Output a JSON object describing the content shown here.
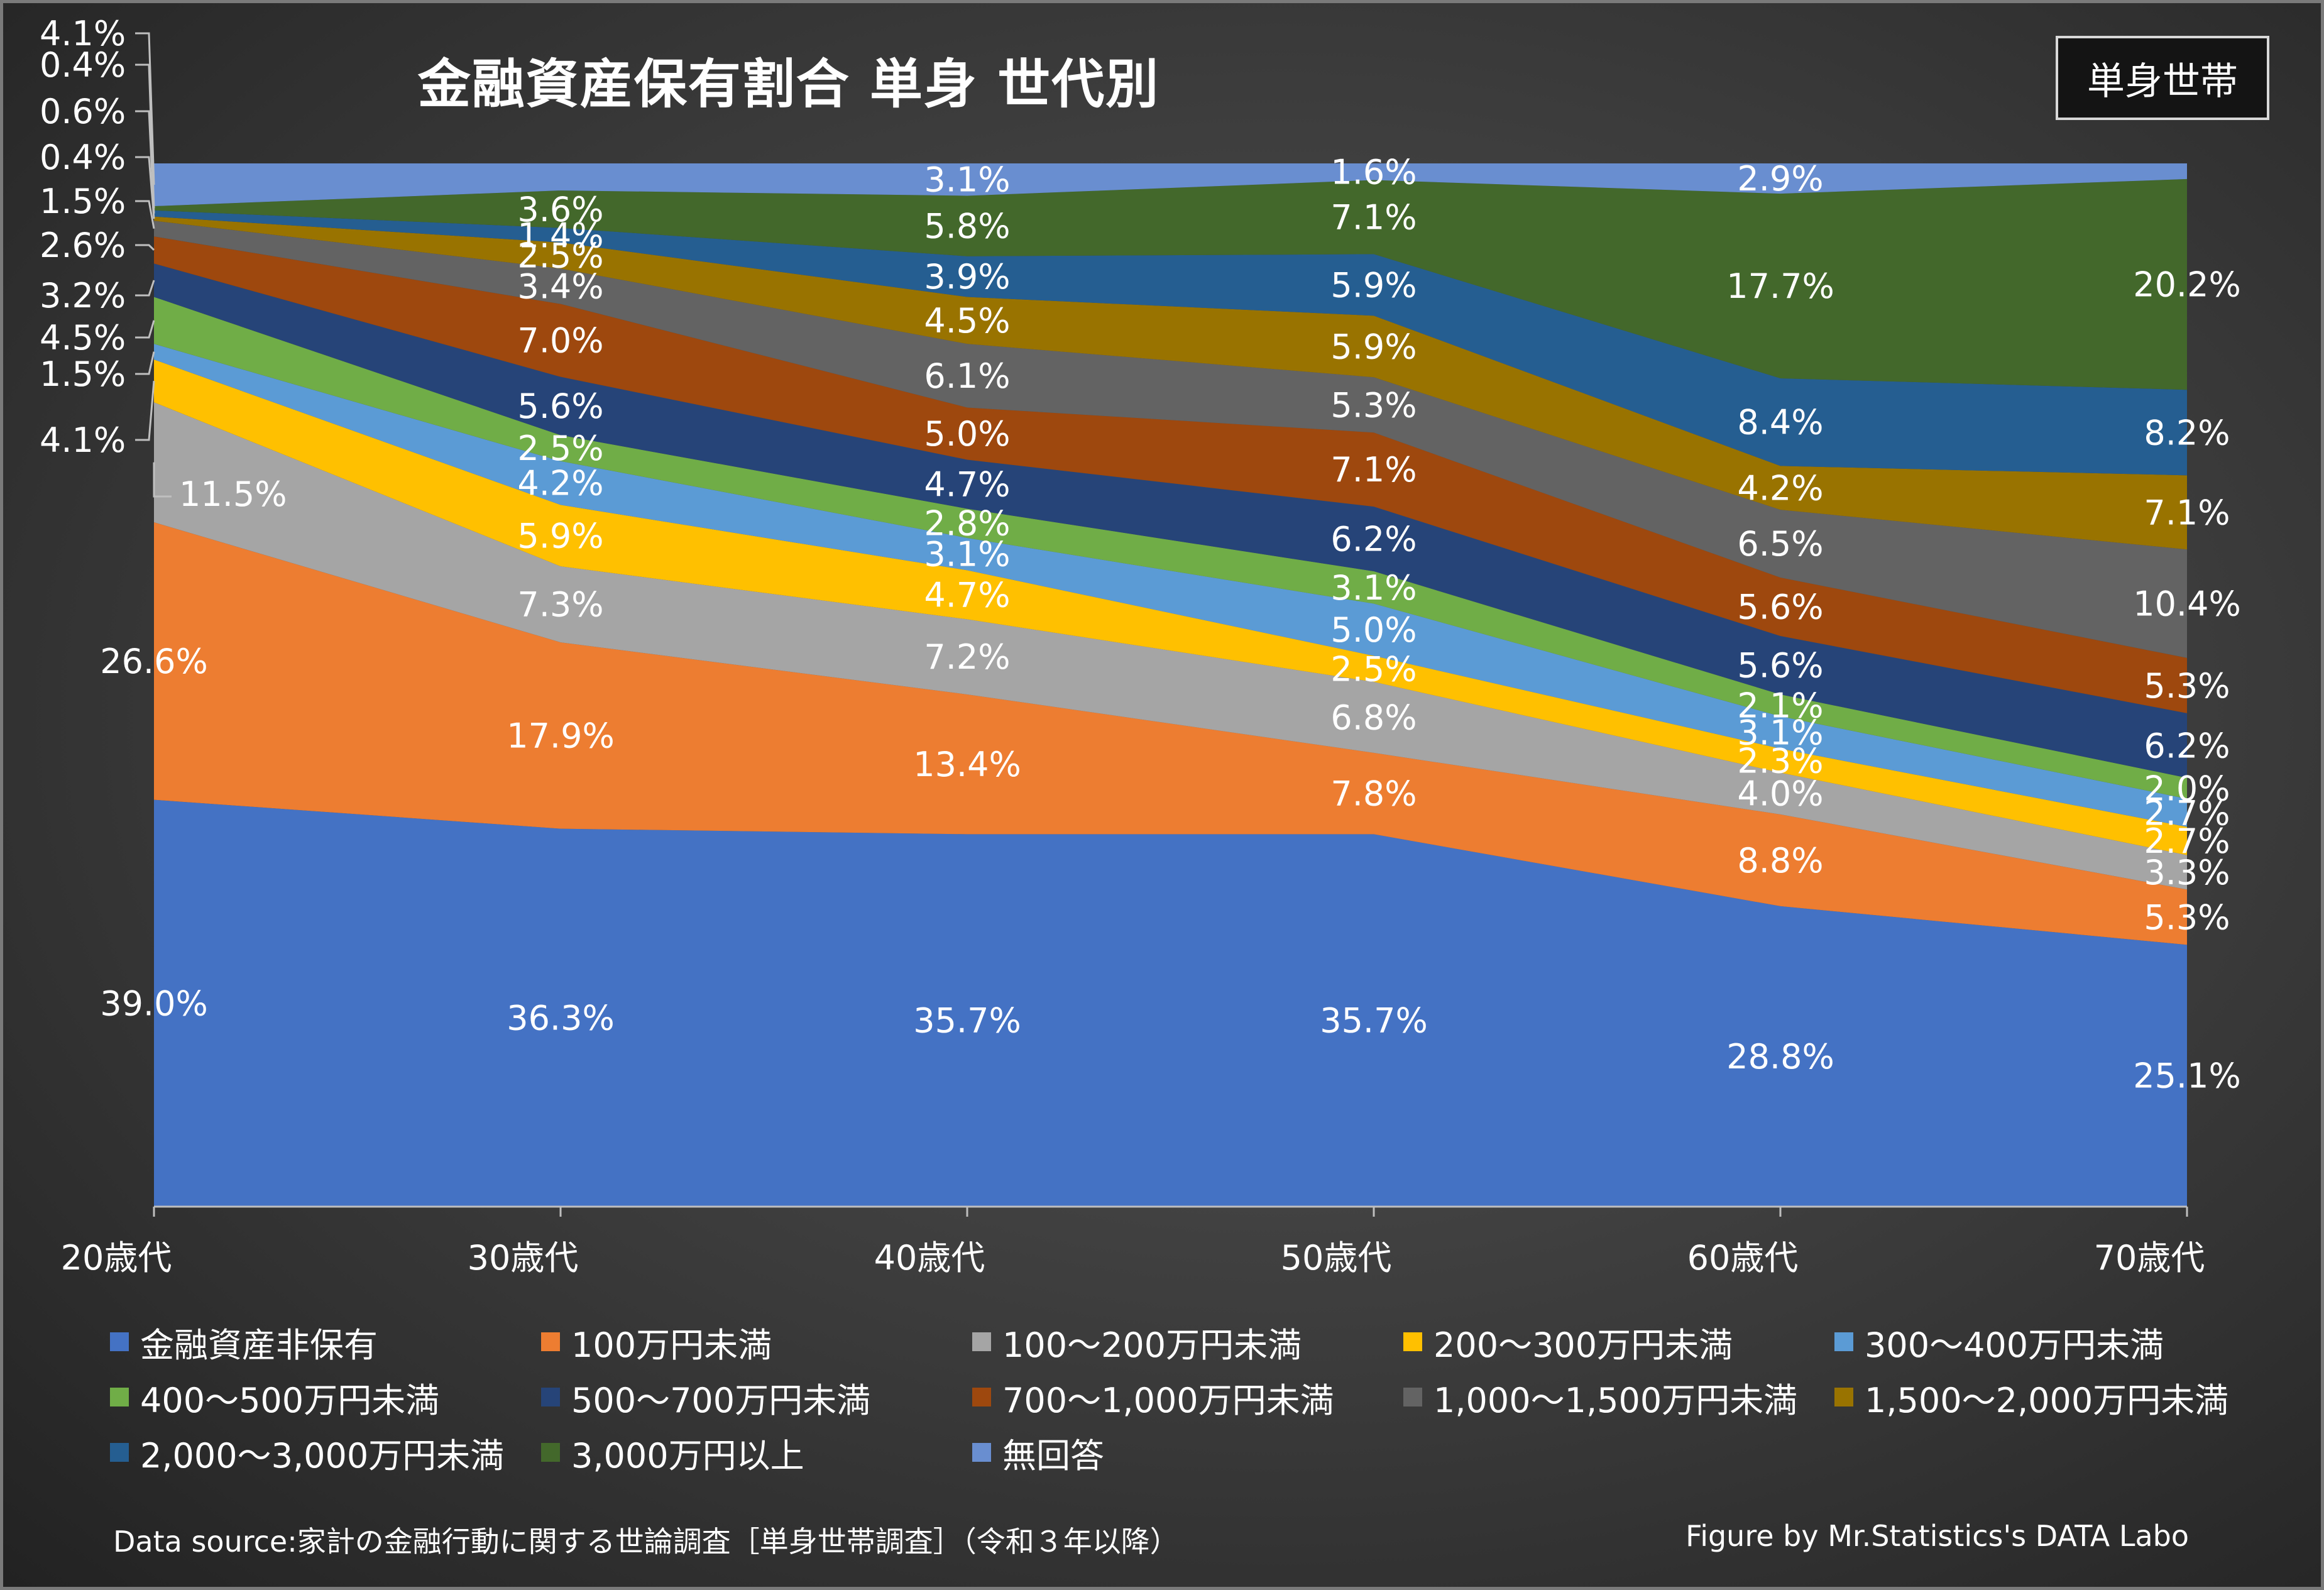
{
  "title": "金融資産保有割合 単身 世代別",
  "badge": "単身世帯",
  "source": "Data source:家計の金融行動に関する世論調査［単身世帯調査］（令和３年以降）",
  "credit": "Figure by Mr.Statistics's DATA Labo",
  "chart_data": {
    "type": "area",
    "stacked": true,
    "normalized_percent": true,
    "categories": [
      "20歳代",
      "30歳代",
      "40歳代",
      "50歳代",
      "60歳代",
      "70歳代"
    ],
    "ylim": [
      0,
      100
    ],
    "grid": false,
    "legend_position": "bottom",
    "series": [
      {
        "name": "金融資産非保有",
        "color": "#4472C4",
        "values": [
          39.0,
          36.3,
          35.7,
          35.7,
          28.8,
          25.1
        ],
        "labels": [
          "39.0%",
          "36.3%",
          "35.7%",
          "35.7%",
          "28.8%",
          "25.1%"
        ]
      },
      {
        "name": "100万円未満",
        "color": "#ED7D31",
        "values": [
          26.6,
          17.9,
          13.4,
          7.8,
          8.8,
          5.3
        ],
        "labels": [
          "26.6%",
          "17.9%",
          "13.4%",
          "7.8%",
          "8.8%",
          "5.3%"
        ]
      },
      {
        "name": "100～200万円未満",
        "color": "#A5A5A5",
        "values": [
          11.5,
          7.3,
          7.2,
          6.8,
          4.0,
          3.3
        ],
        "labels": [
          "11.5%",
          "7.3%",
          "7.2%",
          "6.8%",
          "4.0%",
          "3.3%"
        ]
      },
      {
        "name": "200～300万円未満",
        "color": "#FFC000",
        "values": [
          4.1,
          5.9,
          4.7,
          2.5,
          2.3,
          2.7
        ],
        "labels": [
          "4.1%",
          "5.9%",
          "4.7%",
          "2.5%",
          "2.3%",
          "2.7%"
        ]
      },
      {
        "name": "300～400万円未満",
        "color": "#5B9BD5",
        "values": [
          1.5,
          4.2,
          3.1,
          5.0,
          3.1,
          2.7
        ],
        "labels": [
          "1.5%",
          "4.2%",
          "3.1%",
          "5.0%",
          "3.1%",
          "2.7%"
        ]
      },
      {
        "name": "400～500万円未満",
        "color": "#70AD47",
        "values": [
          4.5,
          2.5,
          2.8,
          3.1,
          2.1,
          2.0
        ],
        "labels": [
          "4.5%",
          "2.5%",
          "2.8%",
          "3.1%",
          "2.1%",
          "2.0%"
        ]
      },
      {
        "name": "500～700万円未満",
        "color": "#264478",
        "values": [
          3.2,
          5.6,
          4.7,
          6.2,
          5.6,
          6.2
        ],
        "labels": [
          "3.2%",
          "5.6%",
          "4.7%",
          "6.2%",
          "5.6%",
          "6.2%"
        ]
      },
      {
        "name": "700～1,000万円未満",
        "color": "#9E480E",
        "values": [
          2.6,
          7.0,
          5.0,
          7.1,
          5.6,
          5.3
        ],
        "labels": [
          "2.6%",
          "7.0%",
          "5.0%",
          "7.1%",
          "5.6%",
          "5.3%"
        ]
      },
      {
        "name": "1,000～1,500万円未満",
        "color": "#636363",
        "values": [
          1.5,
          3.4,
          6.1,
          5.3,
          6.5,
          10.4
        ],
        "labels": [
          "1.5%",
          "3.4%",
          "6.1%",
          "5.3%",
          "6.5%",
          "10.4%"
        ]
      },
      {
        "name": "1,500～2,000万円未満",
        "color": "#997300",
        "values": [
          0.4,
          2.5,
          4.5,
          5.9,
          4.2,
          7.1
        ],
        "labels": [
          "0.4%",
          "2.5%",
          "4.5%",
          "5.9%",
          "4.2%",
          "7.1%"
        ]
      },
      {
        "name": "2,000～3,000万円未満",
        "color": "#255E91",
        "values": [
          0.6,
          1.4,
          3.9,
          5.9,
          8.4,
          8.2
        ],
        "labels": [
          "0.6%",
          "1.4%",
          "3.9%",
          "5.9%",
          "8.4%",
          "8.2%"
        ]
      },
      {
        "name": "3,000万円以上",
        "color": "#43682B",
        "values": [
          0.4,
          3.6,
          5.8,
          7.1,
          17.7,
          20.2
        ],
        "labels": [
          "0.4%",
          "3.6%",
          "5.8%",
          "7.1%",
          "17.7%",
          "20.2%"
        ]
      },
      {
        "name": "無回答",
        "color": "#698ED0",
        "values": [
          4.1,
          2.6,
          3.1,
          1.6,
          2.9,
          1.5
        ],
        "labels": [
          "4.1%",
          "",
          "3.1%",
          "1.6%",
          "2.9%",
          ""
        ]
      }
    ]
  }
}
